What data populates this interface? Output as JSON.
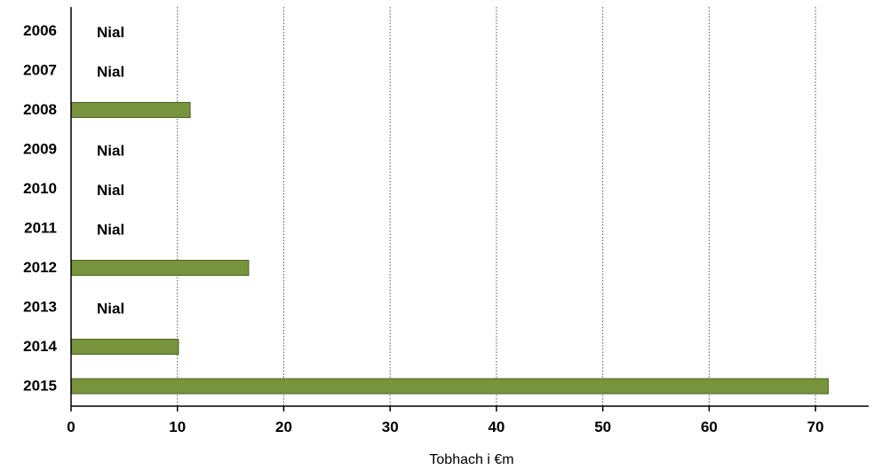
{
  "chart_data": {
    "type": "bar",
    "orientation": "horizontal",
    "categories": [
      "2006",
      "2007",
      "2008",
      "2009",
      "2010",
      "2011",
      "2012",
      "2013",
      "2014",
      "2015"
    ],
    "values": [
      null,
      null,
      11.2,
      null,
      null,
      null,
      16.7,
      null,
      10.1,
      71.2
    ],
    "nil_label": "Nial",
    "xlabel": "Tobhach i €m",
    "xlim": [
      0,
      75
    ],
    "xticks": [
      0,
      10,
      20,
      30,
      40,
      50,
      60,
      70
    ],
    "grid": "vertical-dotted",
    "bar_color": "#77933C",
    "bar_edge_color": "#4F6228"
  }
}
